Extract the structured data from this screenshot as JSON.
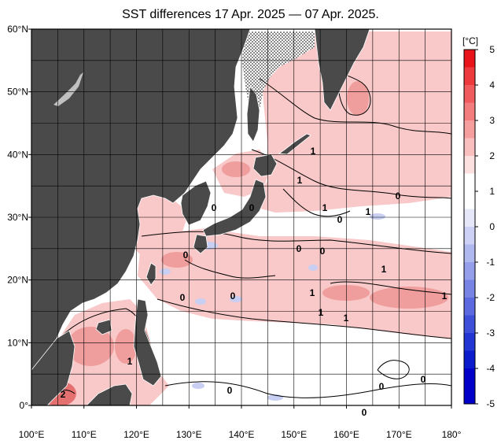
{
  "title": "SST differences 17 Apr. 2025 — 07 Apr. 2025.",
  "map": {
    "lon_range": [
      100,
      180
    ],
    "lat_range": [
      0,
      60
    ],
    "lon_ticks": [
      "100°E",
      "110°E",
      "120°E",
      "130°E",
      "140°E",
      "150°E",
      "160°E",
      "170°E",
      "180°"
    ],
    "lat_ticks": [
      "60°N",
      "50°N",
      "40°N",
      "30°N",
      "20°N",
      "10°N",
      "0°"
    ],
    "colors": {
      "land": "#4a4a4a",
      "grid": "#000000",
      "warm_1": "#f9c8c8",
      "warm_2": "#ef9d9d",
      "warm_3": "#e47070",
      "cool_1": "#c8cff2"
    }
  },
  "colorbar": {
    "unit": "[°C]",
    "labels": [
      "5",
      "4",
      "3",
      "2",
      "1",
      "0",
      "-1",
      "-2",
      "-3",
      "-4",
      "-5"
    ],
    "colors": [
      "#e8141a",
      "#ed3a3d",
      "#f05c5d",
      "#f37d7d",
      "#f69e9e",
      "#f9bfbf",
      "#fce0e0",
      "#ffffff",
      "#ffffff",
      "#e6e8fa",
      "#ccd1f5",
      "#b0b8f0",
      "#949eea",
      "#7884e4",
      "#5b6adf",
      "#3e50d9",
      "#2236d3",
      "#0b1ccd",
      "#0000c8",
      "#0000c8"
    ]
  },
  "contour_labels": [
    "0",
    "0",
    "0",
    "0",
    "0",
    "0",
    "0",
    "0",
    "0",
    "0",
    "1",
    "1",
    "1",
    "1",
    "1",
    "1",
    "1",
    "1",
    "1",
    "1",
    "2",
    "0",
    "0",
    "0"
  ]
}
